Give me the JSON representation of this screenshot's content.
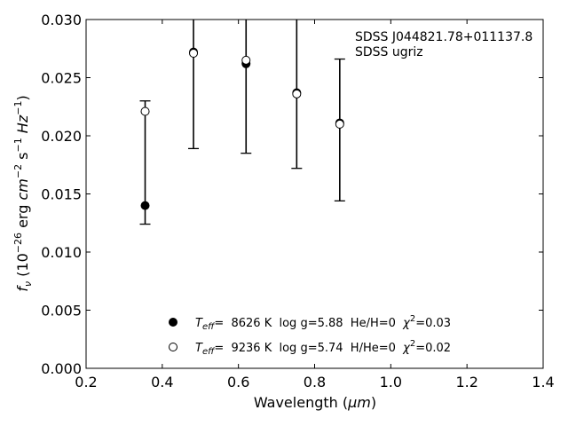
{
  "chart_data": {
    "type": "scatter",
    "annotations": [
      "SDSS J044821.78+011137.8",
      "SDSS ugriz"
    ],
    "xlabel_main": "Wavelength (",
    "xlabel_unit": "μm",
    "xlabel_end": ")",
    "ylabel_main": "f",
    "ylabel_sub": "ν",
    "ylabel_open": " (10",
    "ylabel_exp1": "−26",
    "ylabel_erg": " erg ",
    "ylabel_cm": "cm",
    "ylabel_exp2": "−2",
    "ylabel_s": " s",
    "ylabel_exp3": "−1",
    "ylabel_hz": " Hz",
    "ylabel_exp4": "−1",
    "ylabel_close": ")",
    "xlim": [
      0.2,
      1.4
    ],
    "ylim": [
      0.0,
      0.03
    ],
    "xticks": [
      "0.2",
      "0.4",
      "0.6",
      "0.8",
      "1.0",
      "1.2",
      "1.4"
    ],
    "yticks": [
      "0.000",
      "0.005",
      "0.010",
      "0.015",
      "0.020",
      "0.025",
      "0.030"
    ],
    "grid": false,
    "legend_placement": "lower-center",
    "observed": [
      {
        "x": 0.355,
        "y": 0.014,
        "ylo": 0.0124,
        "yhi": 0.023
      },
      {
        "x": 0.482,
        "y": 0.0271,
        "ylo": 0.0189,
        "yhi": 0.0355
      },
      {
        "x": 0.62,
        "y": 0.0262,
        "ylo": 0.0185,
        "yhi": 0.034
      },
      {
        "x": 0.753,
        "y": 0.0236,
        "ylo": 0.0172,
        "yhi": 0.0305
      },
      {
        "x": 0.866,
        "y": 0.021,
        "ylo": 0.0144,
        "yhi": 0.0266
      }
    ],
    "series": [
      {
        "marker": "filled",
        "label_teff": "T",
        "label_teff_sub": "eff",
        "label_rest": "=  8626 K  log g=5.88  He/H=0  ",
        "label_chi": "χ",
        "label_chi_exp": "2",
        "label_chi_val": "=0.03",
        "x": [
          0.355,
          0.482,
          0.62,
          0.753,
          0.866
        ],
        "y": [
          0.014,
          0.0272,
          0.0262,
          0.0237,
          0.0211
        ]
      },
      {
        "marker": "open",
        "label_teff": "T",
        "label_teff_sub": "eff",
        "label_rest": "=  9236 K  log g=5.74  H/He=0  ",
        "label_chi": "χ",
        "label_chi_exp": "2",
        "label_chi_val": "=0.02",
        "x": [
          0.355,
          0.482,
          0.62,
          0.753,
          0.866
        ],
        "y": [
          0.0221,
          0.0271,
          0.0265,
          0.0236,
          0.021
        ]
      }
    ]
  }
}
